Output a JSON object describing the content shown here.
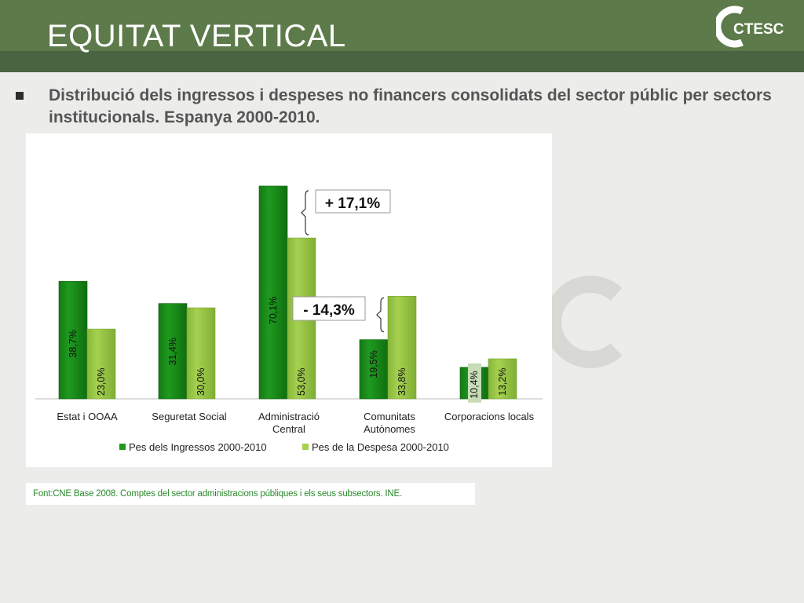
{
  "slide": {
    "title": "EQUITAT VERTICAL",
    "logo_text": "CTESC",
    "subtitle": "Distribució dels ingressos i despeses no financers consolidats del sector públic per sectors institucionals. Espanya 2000-2010.",
    "source": "Font:CNE Base 2008. Comptes del sector administracions públiques i els seus subsectors. INE."
  },
  "colors": {
    "header": "#5d7b4a",
    "income_bar": "#1f9a1f",
    "expense_bar": "#a6d150"
  },
  "chart_data": {
    "type": "bar",
    "categories": [
      [
        "Estat i OOAA"
      ],
      [
        "Seguretat Social"
      ],
      [
        "Administració",
        "Central"
      ],
      [
        "Comunitats",
        "Autònomes"
      ],
      [
        "Corporacions locals"
      ]
    ],
    "series": [
      {
        "name": "Pes dels Ingressos 2000-2010",
        "values": [
          38.7,
          31.4,
          70.1,
          19.5,
          10.4
        ],
        "labels": [
          "38,7%",
          "31,4%",
          "70,1%",
          "19,5%",
          "10,4%"
        ]
      },
      {
        "name": "Pes de la Despesa 2000-2010",
        "values": [
          23.0,
          30.0,
          53.0,
          33.8,
          13.2
        ],
        "labels": [
          "23,0%",
          "30,0%",
          "53,0%",
          "33,8%",
          "13,2%"
        ]
      }
    ],
    "ylim": [
      0,
      75
    ],
    "grid": false,
    "legend": "bottom",
    "annotations": [
      {
        "text": "+ 17,1%",
        "category": 2
      },
      {
        "text": "- 14,3%",
        "category": 3
      }
    ]
  }
}
